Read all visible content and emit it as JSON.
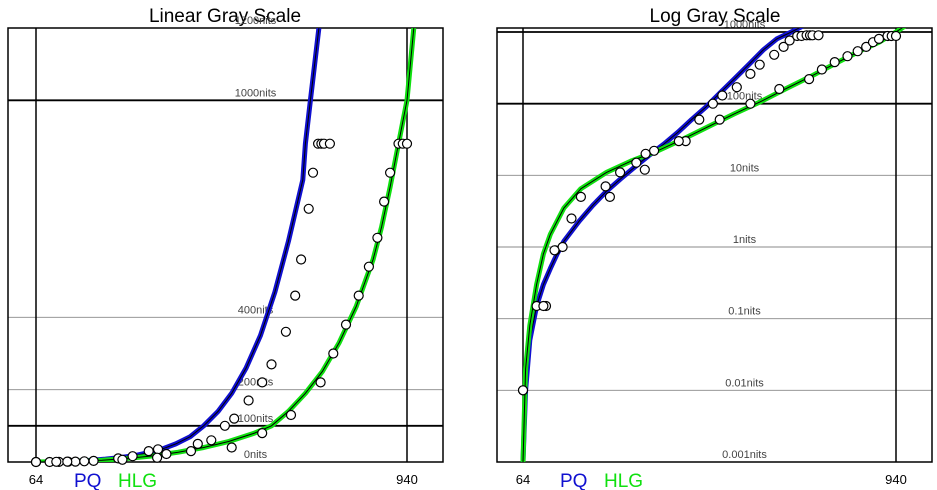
{
  "colors": {
    "pq": "#1010d0",
    "hlg": "#10e010",
    "grid": "#888888",
    "axis": "#000000"
  },
  "chart_data": [
    {
      "type": "line",
      "title": "Linear Gray Scale",
      "x_ticks": [
        {
          "value": 64,
          "label": "64"
        },
        {
          "value": 940,
          "label": "940"
        }
      ],
      "xlim": [
        0,
        1023
      ],
      "ylim": [
        0,
        1200
      ],
      "y_lines": [
        {
          "value": 0,
          "label": "0nits",
          "bold": false
        },
        {
          "value": 100,
          "label": "100nits",
          "bold": true
        },
        {
          "value": 200,
          "label": "200nits",
          "bold": false
        },
        {
          "value": 400,
          "label": "400nits",
          "bold": false
        },
        {
          "value": 1000,
          "label": "1000nits",
          "bold": true
        },
        {
          "value": 1200,
          "label": "1200nits",
          "bold": false
        }
      ],
      "series": [
        {
          "name": "PQ",
          "x": [
            64,
            80,
            96,
            112,
            128,
            144,
            160,
            196,
            228,
            260,
            294,
            326,
            360,
            394,
            428,
            460,
            494,
            526,
            560,
            594,
            628,
            660,
            694,
            700,
            712,
            732
          ],
          "y": [
            0,
            0.05,
            0.2,
            0.5,
            1,
            1.7,
            2.6,
            5,
            8,
            12,
            17,
            25,
            35,
            50,
            70,
            100,
            140,
            190,
            260,
            350,
            470,
            610,
            780,
            880,
            1000,
            1200
          ]
        },
        {
          "name": "HLG",
          "x": [
            64,
            110,
            160,
            220,
            280,
            340,
            400,
            460,
            520,
            580,
            620,
            660,
            700,
            740,
            780,
            820,
            860,
            880,
            900,
            920,
            940,
            956
          ],
          "y": [
            0,
            0.5,
            2,
            5,
            10,
            17,
            27,
            40,
            57,
            80,
            100,
            140,
            190,
            250,
            330,
            430,
            560,
            650,
            760,
            880,
            1000,
            1200
          ]
        }
      ],
      "markers": {
        "PQ": {
          "x": [
            64,
            96,
            118,
            140,
            157,
            178,
            200,
            258,
            292,
            330,
            352,
            446,
            478,
            510,
            532,
            566,
            598,
            620,
            654,
            676,
            690,
            708,
            718,
            730,
            738,
            744,
            758
          ],
          "y": [
            0,
            0,
            0.3,
            0.7,
            1,
            2,
            3,
            10,
            16,
            30,
            35,
            50,
            60,
            100,
            120,
            170,
            220,
            270,
            360,
            460,
            560,
            700,
            800,
            880,
            880,
            880,
            880
          ]
        },
        "HLG": {
          "x": [
            64,
            112,
            138,
            268,
            350,
            372,
            430,
            526,
            598,
            666,
            736,
            766,
            796,
            826,
            850,
            870,
            886,
            900,
            920,
            930,
            940
          ],
          "y": [
            0,
            0.5,
            1,
            6,
            12,
            22,
            30,
            40,
            80,
            130,
            220,
            300,
            380,
            460,
            540,
            620,
            720,
            800,
            880,
            880,
            880
          ]
        }
      }
    },
    {
      "type": "line",
      "title": "Log Gray Scale",
      "x_ticks": [
        {
          "value": 64,
          "label": "64"
        },
        {
          "value": 940,
          "label": "940"
        }
      ],
      "xlim": [
        0,
        1023
      ],
      "ylim": [
        0.001,
        1200
      ],
      "yscale": "log",
      "y_lines": [
        {
          "value": 0.001,
          "label": "0.001nits",
          "bold": false
        },
        {
          "value": 0.01,
          "label": "0.01nits",
          "bold": false
        },
        {
          "value": 0.1,
          "label": "0.1nits",
          "bold": false
        },
        {
          "value": 1,
          "label": "1nits",
          "bold": false
        },
        {
          "value": 10,
          "label": "10nits",
          "bold": false
        },
        {
          "value": 100,
          "label": "100nits",
          "bold": true
        },
        {
          "value": 1000,
          "label": "1000nits",
          "bold": true
        }
      ],
      "series": [
        {
          "name": "PQ",
          "x": [
            64,
            70,
            80,
            96,
            112,
            128,
            144,
            160,
            196,
            228,
            260,
            294,
            326,
            360,
            394,
            428,
            460,
            494,
            526,
            560,
            594,
            628,
            660,
            694,
            720
          ],
          "y": [
            0.001,
            0.01,
            0.05,
            0.15,
            0.3,
            0.5,
            0.8,
            1.2,
            2.3,
            3.8,
            6,
            9,
            13,
            19,
            27,
            40,
            60,
            90,
            140,
            220,
            350,
            560,
            800,
            1000,
            1200
          ]
        },
        {
          "name": "HLG",
          "x": [
            64,
            70,
            80,
            96,
            112,
            128,
            160,
            200,
            260,
            320,
            380,
            440,
            500,
            560,
            620,
            680,
            740,
            800,
            860,
            900,
            940,
            960
          ],
          "y": [
            0.001,
            0.02,
            0.08,
            0.3,
            0.8,
            1.5,
            3.5,
            6.5,
            11,
            16,
            22,
            32,
            48,
            72,
            105,
            160,
            240,
            370,
            560,
            720,
            1000,
            1200
          ]
        }
      ],
      "markers": {
        "PQ": {
          "x": [
            64,
            96,
            118,
            140,
            157,
            178,
            200,
            258,
            292,
            330,
            352,
            446,
            478,
            510,
            532,
            566,
            598,
            620,
            654,
            676,
            690,
            708,
            718,
            730,
            738,
            744,
            758
          ],
          "y": [
            0.01,
            0.15,
            0.15,
            0.9,
            1.0,
            2.5,
            5,
            7,
            11,
            15,
            20,
            30,
            60,
            100,
            130,
            170,
            260,
            350,
            480,
            620,
            760,
            880,
            880,
            900,
            900,
            900,
            900
          ]
        },
        "HLG": {
          "x": [
            64,
            112,
            138,
            268,
            350,
            372,
            430,
            526,
            598,
            666,
            736,
            766,
            796,
            826,
            850,
            870,
            886,
            900,
            920,
            930,
            940
          ],
          "y": [
            0.01,
            0.15,
            0.9,
            5,
            12,
            22,
            30,
            60,
            100,
            160,
            220,
            300,
            380,
            460,
            540,
            620,
            720,
            800,
            880,
            880,
            880
          ]
        }
      }
    }
  ],
  "legend": {
    "pq": "PQ",
    "hlg": "HLG"
  }
}
